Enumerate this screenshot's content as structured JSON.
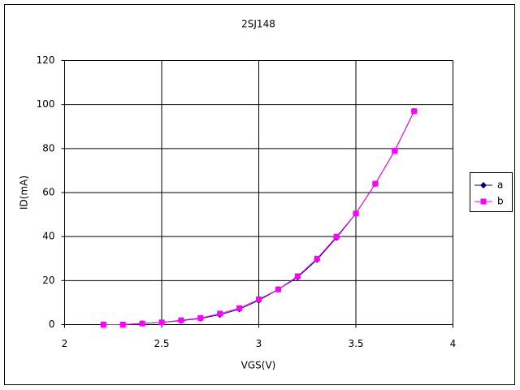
{
  "chart_data": {
    "type": "line",
    "title": "2SJ148",
    "x_label": "VGS(V)",
    "y_label": "ID(mA)",
    "x": [
      2.2,
      2.3,
      2.4,
      2.5,
      2.6,
      2.7,
      2.8,
      2.9,
      3.0,
      3.1,
      3.2,
      3.3,
      3.4,
      3.5,
      3.6,
      3.7,
      3.8
    ],
    "series": [
      {
        "name": "a",
        "color": "#000080",
        "marker": "diamond",
        "values": [
          0,
          0,
          0.5,
          1,
          1.8,
          2.8,
          4.5,
          7,
          11,
          16,
          21.5,
          29.5,
          39.5,
          50.5,
          64,
          79,
          97
        ]
      },
      {
        "name": "b",
        "color": "#ff00ff",
        "marker": "square",
        "values": [
          0,
          0,
          0.5,
          1,
          2,
          3,
          5,
          7.5,
          11.5,
          16,
          22,
          30,
          40,
          50.5,
          64,
          79,
          97
        ]
      }
    ],
    "xlim": [
      2,
      4
    ],
    "xticks": [
      2,
      2.5,
      3,
      3.5,
      4
    ],
    "ylim": [
      0,
      120
    ],
    "yticks": [
      0,
      20,
      40,
      60,
      80,
      100,
      120
    ],
    "grid": true,
    "legend": "right"
  }
}
